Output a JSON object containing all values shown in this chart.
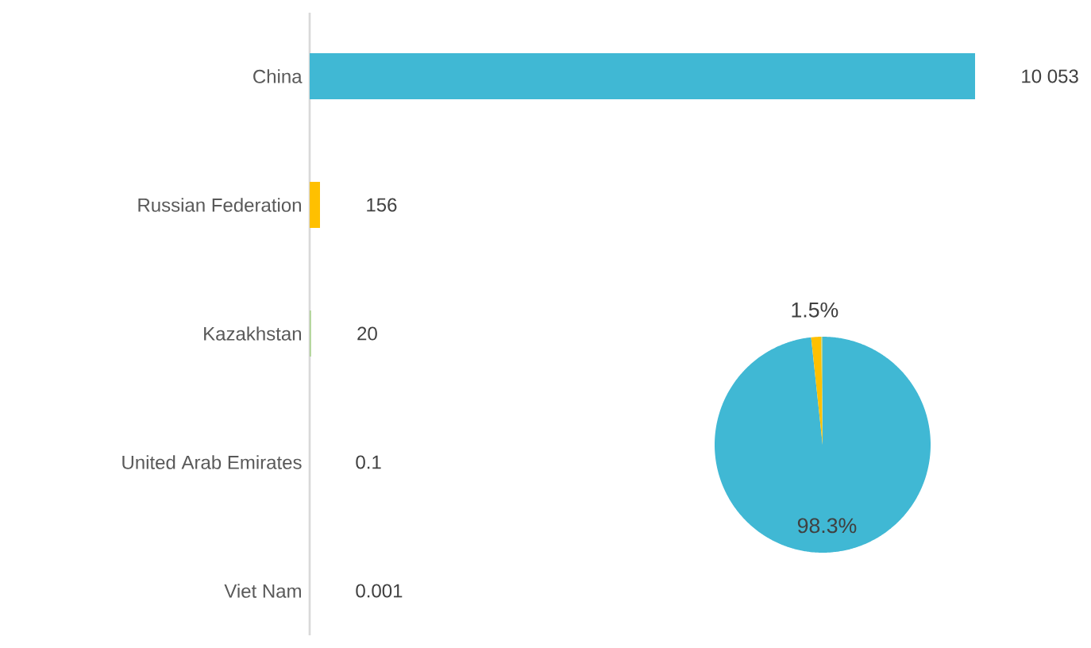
{
  "chart_data": [
    {
      "type": "bar",
      "orientation": "horizontal",
      "categories": [
        "China",
        "Russian Federation",
        "Kazakhstan",
        "United Arab Emirates",
        "Viet Nam"
      ],
      "values": [
        10053,
        156,
        20,
        0.1,
        0.001
      ],
      "colors": [
        "#40b8d4",
        "#ffc000",
        "#a9d18e",
        "#a5a5a5",
        "#a5a5a5"
      ],
      "value_labels": [
        "10 053",
        "156",
        "20",
        "0.1",
        "0.001"
      ]
    },
    {
      "type": "pie",
      "categories": [
        null,
        null,
        null
      ],
      "values": [
        98.3,
        1.5,
        0.2
      ],
      "colors": [
        "#40b8d4",
        "#ffc000",
        "#a9d18e"
      ],
      "value_labels": [
        "98.3%",
        "1.5%",
        null
      ]
    }
  ]
}
